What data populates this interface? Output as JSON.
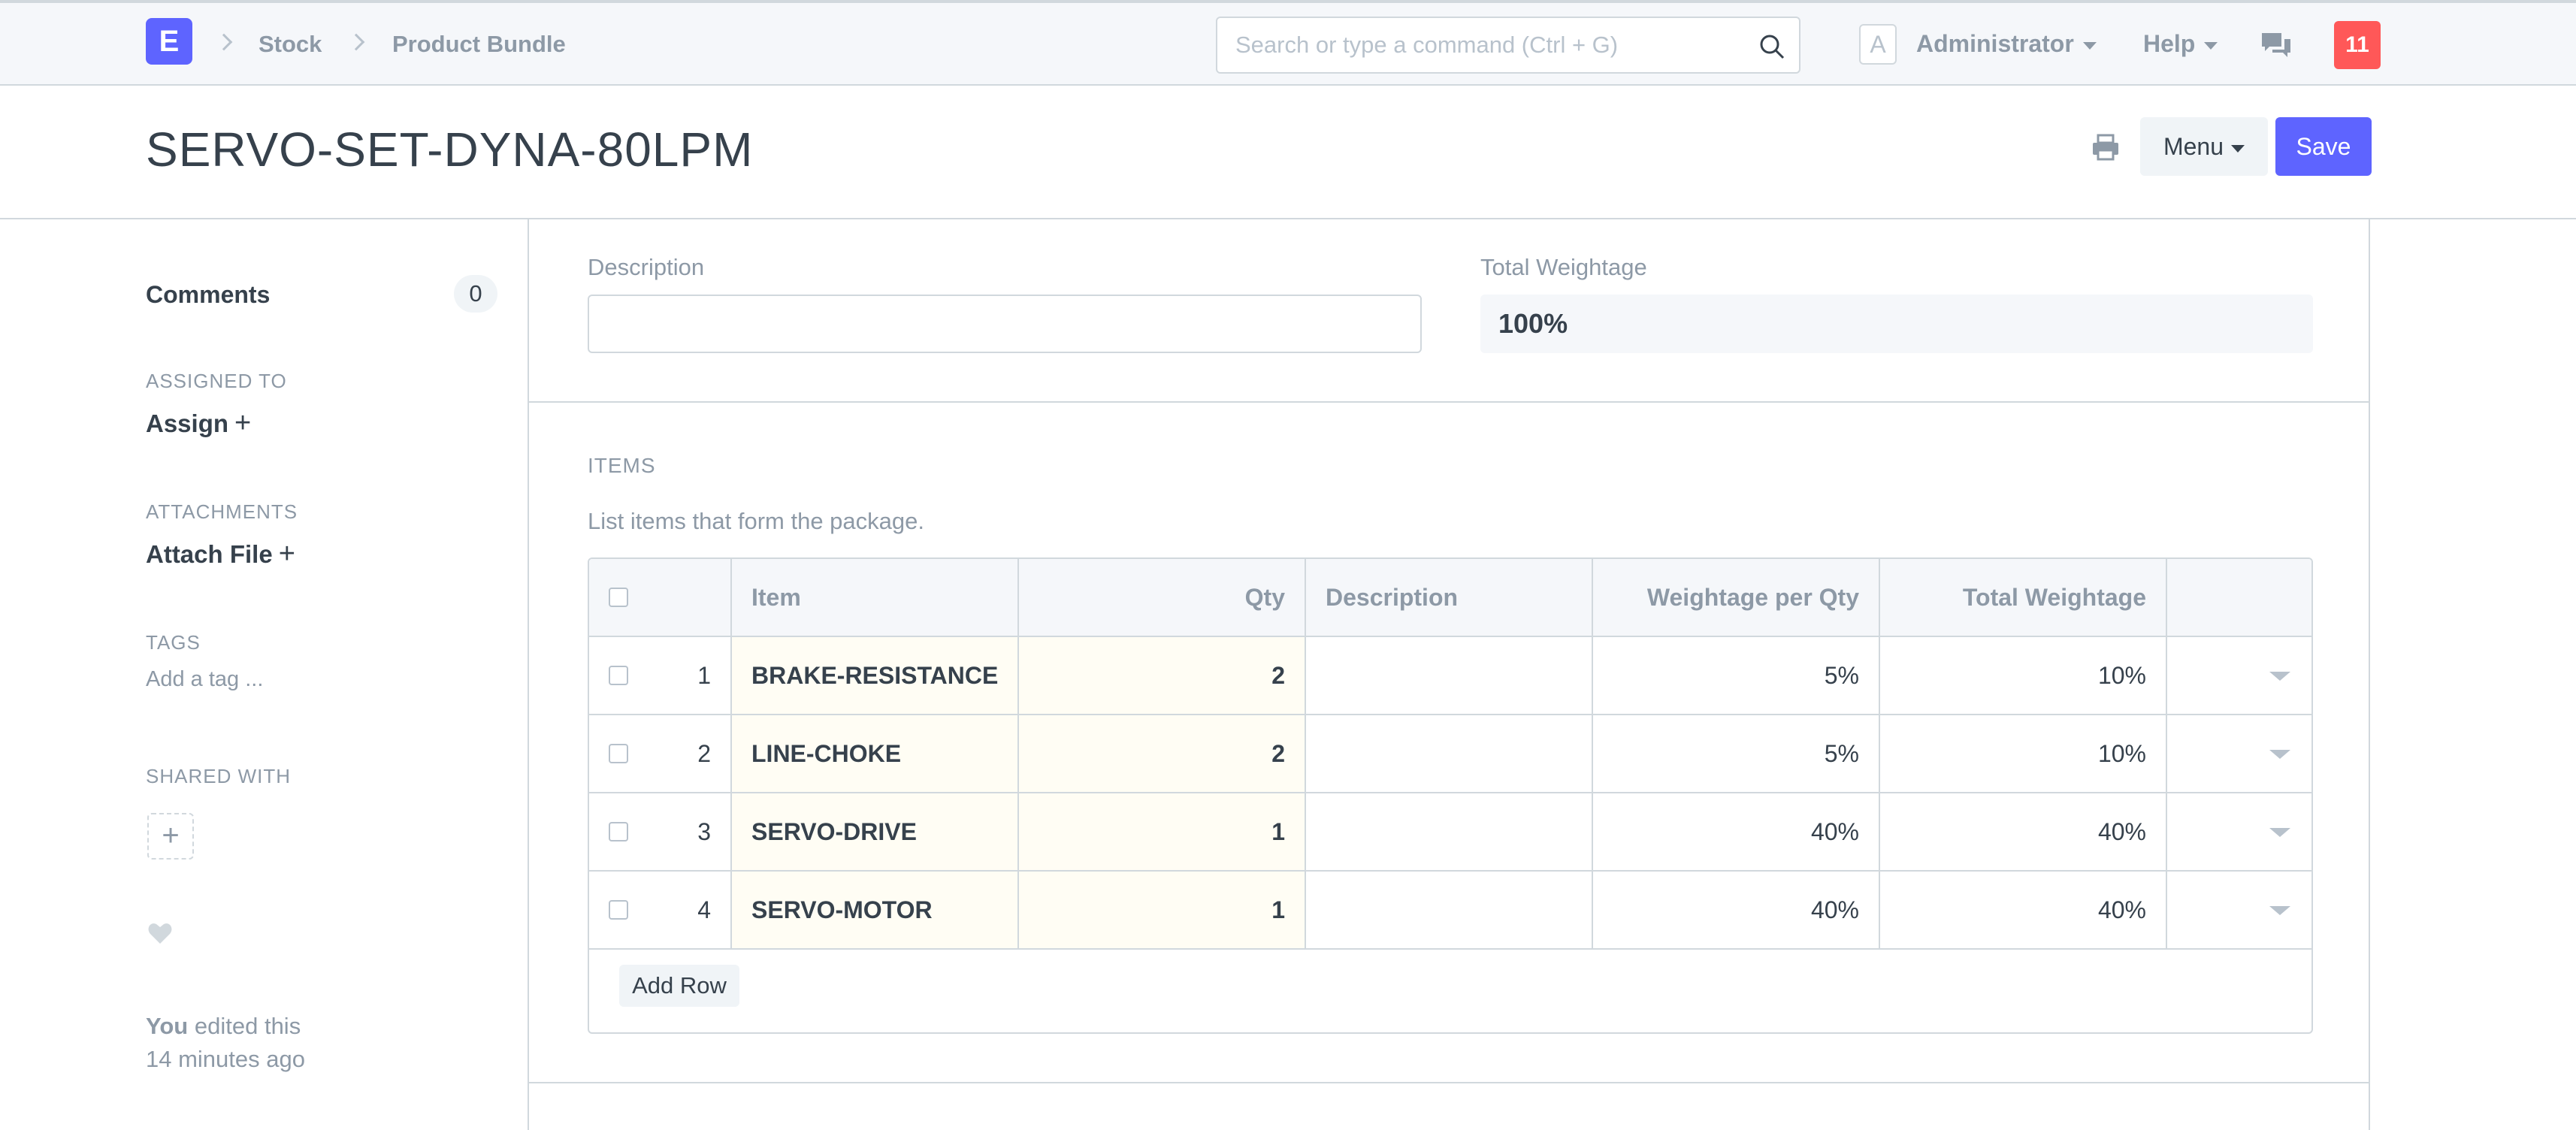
{
  "navbar": {
    "logo_letter": "E",
    "breadcrumbs": [
      "Stock",
      "Product Bundle"
    ],
    "search_placeholder": "Search or type a command (Ctrl + G)",
    "avatar_letter": "A",
    "user_label": "Administrator",
    "help_label": "Help",
    "notification_count": "11"
  },
  "page": {
    "title": "SERVO-SET-DYNA-80LPM",
    "menu_label": "Menu",
    "save_label": "Save"
  },
  "sidebar": {
    "comments_label": "Comments",
    "comments_count": "0",
    "assigned_heading": "ASSIGNED TO",
    "assign_label": "Assign",
    "attachments_heading": "ATTACHMENTS",
    "attach_label": "Attach File",
    "tags_heading": "TAGS",
    "tag_placeholder": "Add a tag ...",
    "shared_heading": "SHARED WITH",
    "edit_user": "You",
    "edit_text": "edited this",
    "edit_time": "14 minutes ago"
  },
  "form": {
    "description_label": "Description",
    "description_value": "",
    "total_weightage_label": "Total Weightage",
    "total_weightage_value": "100%",
    "items_heading": "ITEMS",
    "items_description": "List items that form the package.",
    "add_row_label": "Add Row"
  },
  "grid": {
    "columns": [
      "Item",
      "Qty",
      "Description",
      "Weightage per Qty",
      "Total Weightage"
    ],
    "rows": [
      {
        "idx": "1",
        "item": "BRAKE-RESISTANCE",
        "qty": "2",
        "description": "",
        "weightage_per_qty": "5%",
        "total_weightage": "10%"
      },
      {
        "idx": "2",
        "item": "LINE-CHOKE",
        "qty": "2",
        "description": "",
        "weightage_per_qty": "5%",
        "total_weightage": "10%"
      },
      {
        "idx": "3",
        "item": "SERVO-DRIVE",
        "qty": "1",
        "description": "",
        "weightage_per_qty": "40%",
        "total_weightage": "40%"
      },
      {
        "idx": "4",
        "item": "SERVO-MOTOR",
        "qty": "1",
        "description": "",
        "weightage_per_qty": "40%",
        "total_weightage": "40%"
      }
    ]
  },
  "colors": {
    "accent": "#5e64ff",
    "notification": "#ff5858",
    "editable_cell": "#fffdf4"
  }
}
